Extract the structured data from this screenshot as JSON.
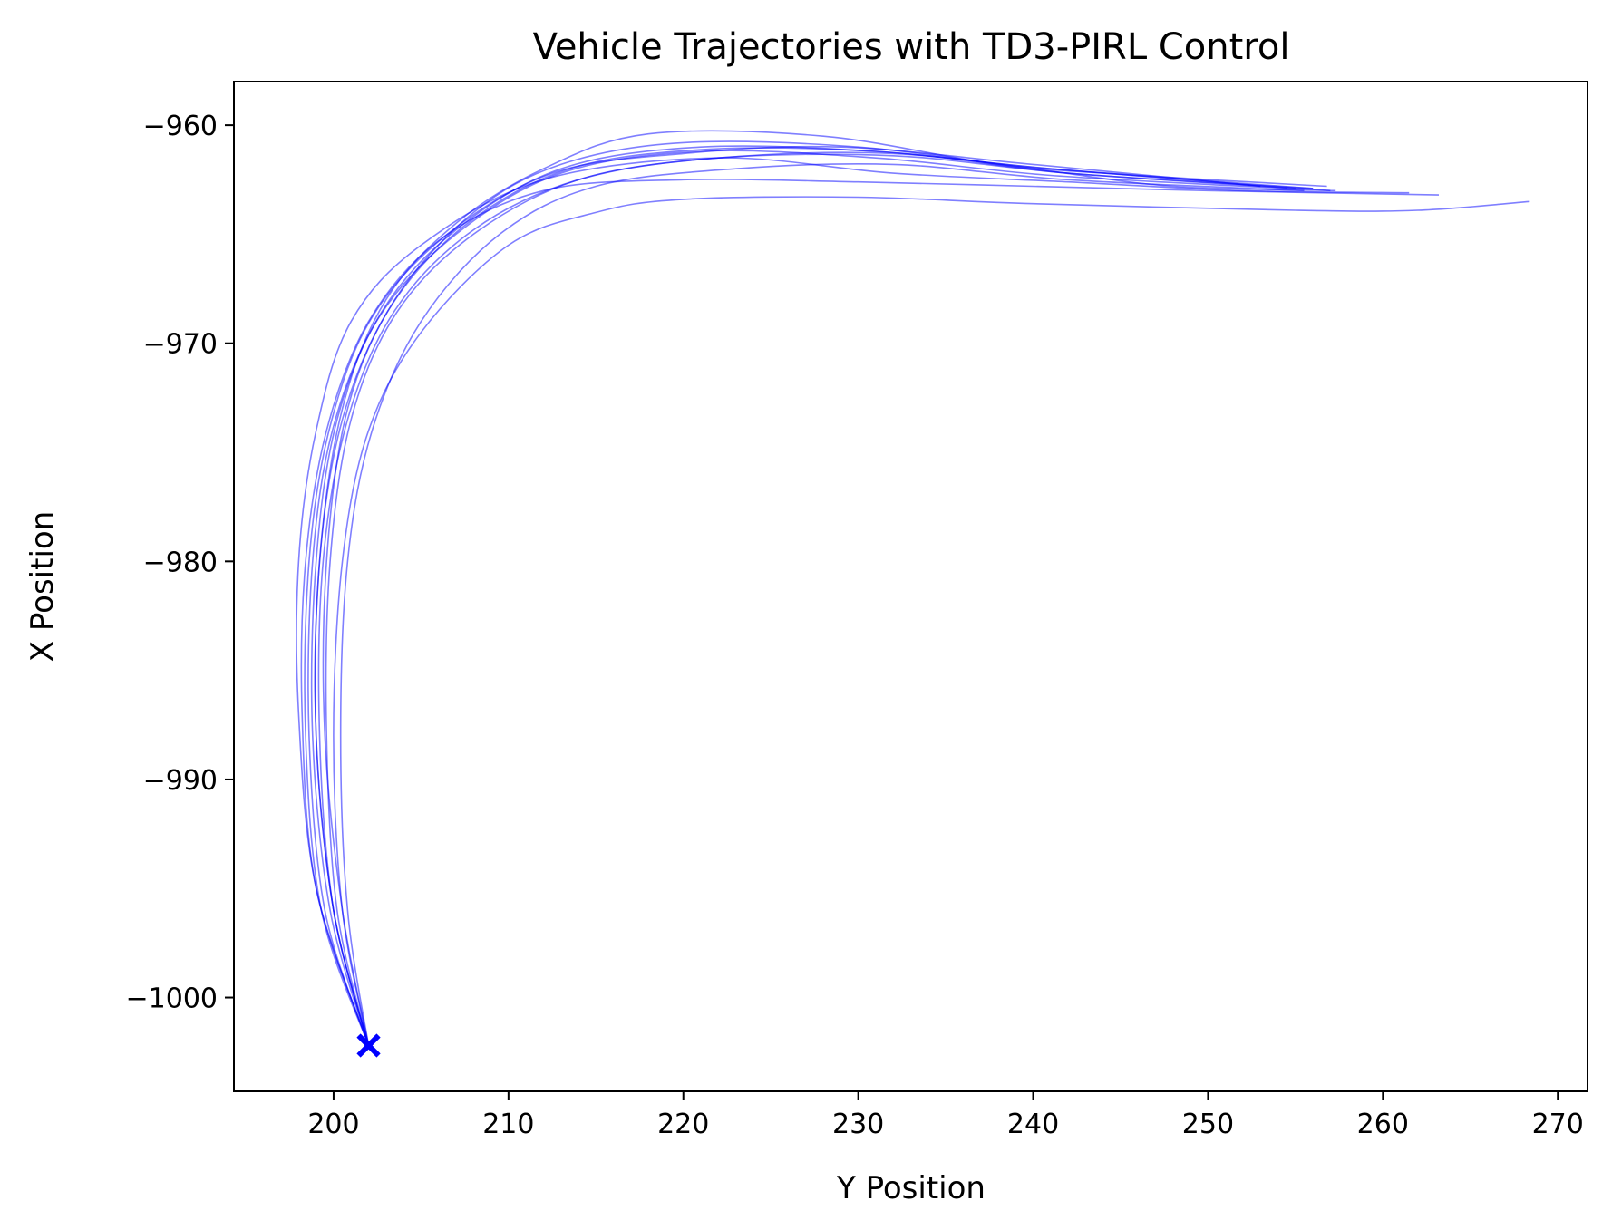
{
  "chart_data": {
    "type": "line",
    "title": "Vehicle Trajectories with TD3-PIRL Control",
    "xlabel": "Y Position",
    "ylabel": "X Position",
    "xlim": [
      194.3,
      271.7
    ],
    "ylim": [
      -1004.3,
      -958.0
    ],
    "xticks": [
      200,
      210,
      220,
      230,
      240,
      250,
      260,
      270
    ],
    "yticks": [
      -960,
      -970,
      -980,
      -990,
      -1000
    ],
    "xtick_labels": [
      "200",
      "210",
      "220",
      "230",
      "240",
      "250",
      "260",
      "270"
    ],
    "ytick_labels": [
      "−960",
      "−970",
      "−980",
      "−990",
      "−1000"
    ],
    "grid": false,
    "line_color": "#0000ff",
    "line_opacity": 0.5,
    "start_marker": {
      "x": 202.0,
      "y": -1002.2,
      "symbol": "x",
      "color": "#0000ff"
    },
    "series": [
      {
        "x": [
          202.0,
          200.0,
          199.0,
          199.2,
          200.5,
          203.0,
          207.0,
          212.0,
          218.0,
          228.0,
          238.0,
          246.0,
          256.8
        ],
        "y": [
          -1002.2,
          -996.0,
          -988.0,
          -980.0,
          -973.0,
          -968.0,
          -964.5,
          -962.0,
          -960.4,
          -960.5,
          -961.8,
          -962.3,
          -962.8
        ]
      },
      {
        "x": [
          202.0,
          200.5,
          199.5,
          199.6,
          200.8,
          203.5,
          208.0,
          213.0,
          220.0,
          230.0,
          240.0,
          248.0,
          257.3
        ],
        "y": [
          -1002.2,
          -996.0,
          -988.0,
          -980.0,
          -973.0,
          -968.0,
          -964.0,
          -961.8,
          -960.8,
          -961.0,
          -962.0,
          -962.8,
          -963.0
        ]
      },
      {
        "x": [
          202.0,
          199.0,
          198.0,
          198.0,
          199.0,
          201.0,
          205.0,
          212.0,
          222.0,
          232.0,
          242.0,
          252.0,
          261.5
        ],
        "y": [
          -1002.2,
          -995.0,
          -987.0,
          -980.0,
          -974.0,
          -969.0,
          -965.5,
          -962.5,
          -961.5,
          -962.2,
          -962.6,
          -963.0,
          -963.1
        ]
      },
      {
        "x": [
          202.0,
          199.0,
          198.2,
          198.4,
          199.6,
          202.0,
          206.0,
          212.0,
          220.0,
          230.0,
          240.0,
          250.0,
          263.2
        ],
        "y": [
          -1002.2,
          -995.0,
          -987.0,
          -980.0,
          -974.0,
          -969.0,
          -965.3,
          -963.0,
          -962.5,
          -962.6,
          -962.8,
          -963.0,
          -963.2
        ]
      },
      {
        "x": [
          202.0,
          200.5,
          200.0,
          200.5,
          202.0,
          205.0,
          210.0,
          215.0,
          220.0,
          230.0,
          240.0,
          255.0,
          262.0,
          268.4
        ],
        "y": [
          -1002.2,
          -996.0,
          -988.0,
          -980.0,
          -974.0,
          -969.5,
          -965.5,
          -964.0,
          -963.4,
          -963.3,
          -963.6,
          -963.9,
          -963.9,
          -963.5
        ]
      },
      {
        "x": [
          202.0,
          200.0,
          199.2,
          199.4,
          200.8,
          203.5,
          208.0,
          214.0,
          222.0,
          232.0,
          242.0,
          257.0
        ],
        "y": [
          -1002.2,
          -996.0,
          -988.0,
          -980.0,
          -973.5,
          -968.5,
          -964.8,
          -962.5,
          -961.5,
          -961.4,
          -962.2,
          -963.0
        ]
      },
      {
        "x": [
          202.0,
          199.8,
          198.8,
          199.0,
          200.2,
          202.8,
          207.0,
          213.0,
          221.0,
          231.0,
          241.0,
          255.0
        ],
        "y": [
          -1002.2,
          -996.0,
          -988.0,
          -980.0,
          -973.5,
          -968.5,
          -964.8,
          -962.0,
          -961.0,
          -961.2,
          -962.0,
          -962.9
        ]
      },
      {
        "x": [
          202.0,
          200.2,
          199.6,
          199.8,
          201.0,
          203.6,
          208.0,
          214.0,
          222.0,
          232.0,
          242.0,
          256.0
        ],
        "y": [
          -1002.2,
          -996.0,
          -988.0,
          -980.0,
          -973.5,
          -968.6,
          -965.0,
          -962.5,
          -961.5,
          -961.3,
          -962.2,
          -962.9
        ]
      },
      {
        "x": [
          202.0,
          199.5,
          198.6,
          198.8,
          200.0,
          202.6,
          207.0,
          213.0,
          221.0,
          231.0,
          241.0,
          254.5
        ],
        "y": [
          -1002.2,
          -996.0,
          -988.0,
          -980.0,
          -973.8,
          -968.8,
          -965.0,
          -962.2,
          -961.2,
          -961.5,
          -962.3,
          -962.9
        ]
      },
      {
        "x": [
          202.0,
          200.8,
          200.4,
          200.8,
          202.2,
          205.0,
          209.5,
          215.0,
          223.0,
          232.0,
          242.0,
          255.5
        ],
        "y": [
          -1002.2,
          -996.0,
          -988.0,
          -980.0,
          -974.0,
          -969.0,
          -965.0,
          -962.8,
          -962.0,
          -961.8,
          -962.5,
          -963.0
        ]
      },
      {
        "x": [
          202.0,
          199.3,
          198.4,
          198.6,
          199.8,
          202.2,
          206.5,
          212.5,
          220.0,
          229.0,
          240.0,
          253.0
        ],
        "y": [
          -1002.2,
          -996.0,
          -988.0,
          -980.0,
          -973.8,
          -968.8,
          -965.0,
          -962.2,
          -961.3,
          -961.0,
          -961.8,
          -962.8
        ]
      },
      {
        "x": [
          202.0,
          200.0,
          199.0,
          199.2,
          200.5,
          203.2,
          207.5,
          213.5,
          221.5,
          231.0,
          241.0,
          256.0
        ],
        "y": [
          -1002.2,
          -996.0,
          -988.0,
          -980.0,
          -973.5,
          -968.4,
          -964.6,
          -962.0,
          -961.1,
          -961.2,
          -962.0,
          -962.9
        ]
      }
    ]
  }
}
